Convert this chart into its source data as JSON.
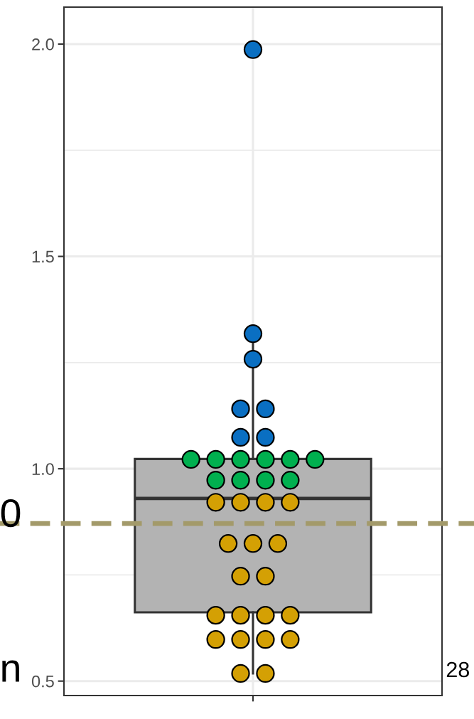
{
  "chart_data": {
    "type": "box",
    "categories": [
      null
    ],
    "boxes": [
      {
        "low": 0.518,
        "q1": 0.662,
        "median": 0.93,
        "q3": 1.023,
        "high": 1.318
      }
    ],
    "series": [
      {
        "type": "scatter",
        "color": "#0a6fc2",
        "x": [
          null,
          null,
          null,
          null,
          null,
          null,
          null
        ],
        "values": [
          1.987,
          1.318,
          1.258,
          1.141,
          1.141,
          1.074,
          1.074
        ]
      },
      {
        "type": "scatter",
        "color": "#00b04f",
        "x": [
          null,
          null,
          null,
          null,
          null,
          null,
          null,
          null,
          null,
          null
        ],
        "values": [
          1.022,
          1.022,
          1.022,
          1.022,
          1.022,
          1.022,
          0.973,
          0.973,
          0.973,
          0.973
        ]
      },
      {
        "type": "scatter",
        "color": "#d4a004",
        "x": [
          null,
          null,
          null,
          null,
          null,
          null,
          null,
          null,
          null,
          null,
          null,
          null,
          null,
          null,
          null,
          null,
          null,
          null,
          null
        ],
        "values": [
          0.921,
          0.921,
          0.921,
          0.921,
          0.824,
          0.824,
          0.824,
          0.747,
          0.747,
          0.655,
          0.655,
          0.655,
          0.655,
          0.598,
          0.598,
          0.598,
          0.598,
          0.518,
          0.518
        ]
      }
    ],
    "ylim": [
      0.466,
      2.087
    ],
    "yticks": [
      {
        "value": 0.5,
        "label": "0.5"
      },
      {
        "value": 1.0,
        "label": "1.0"
      },
      {
        "value": 1.5,
        "label": "1.5"
      },
      {
        "value": 2.0,
        "label": "2.0"
      }
    ],
    "ref_lines": [
      {
        "axis": "y",
        "value": 0.871,
        "color": "#a39a6a",
        "line_style": "dashed"
      }
    ],
    "grid": true,
    "marker": "circle",
    "annotations": [
      "0",
      "n",
      "28"
    ]
  }
}
